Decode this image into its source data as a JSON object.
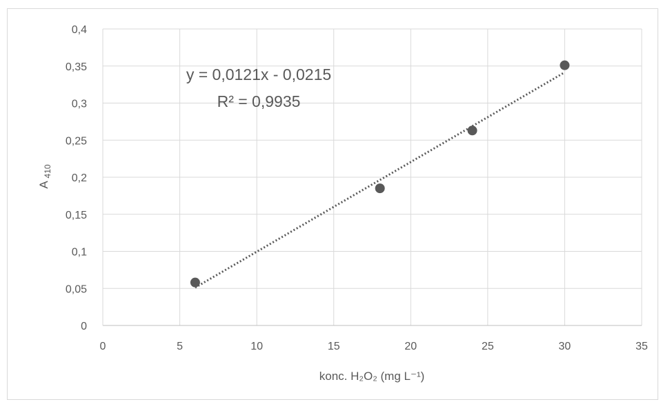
{
  "chart_data": {
    "type": "scatter",
    "title": "",
    "xlabel": "konc. H₂O₂ (mg L⁻¹)",
    "ylabel": "A 410",
    "xlim": [
      0,
      35
    ],
    "ylim": [
      0,
      0.4
    ],
    "x_ticks": [
      0,
      5,
      10,
      15,
      20,
      25,
      30,
      35
    ],
    "x_tick_labels": [
      "0",
      "5",
      "10",
      "15",
      "20",
      "25",
      "30",
      "35"
    ],
    "y_ticks": [
      0,
      0.05,
      0.1,
      0.15,
      0.2,
      0.25,
      0.3,
      0.35,
      0.4
    ],
    "y_tick_labels": [
      "0",
      "0,05",
      "0,1",
      "0,15",
      "0,2",
      "0,25",
      "0,3",
      "0,35",
      "0,4"
    ],
    "grid": true,
    "series": [
      {
        "x": [
          6,
          18,
          24,
          30
        ],
        "y": [
          0.058,
          0.185,
          0.263,
          0.351
        ],
        "color": "#595959"
      }
    ],
    "trendline": {
      "type": "linear",
      "slope": 0.0121,
      "intercept": -0.0215,
      "x_range": [
        6,
        30
      ],
      "style": "dotted",
      "color": "#595959"
    },
    "annotations": {
      "equation": "y = 0,0121x - 0,0215",
      "r_squared": "R² = 0,9935"
    }
  }
}
